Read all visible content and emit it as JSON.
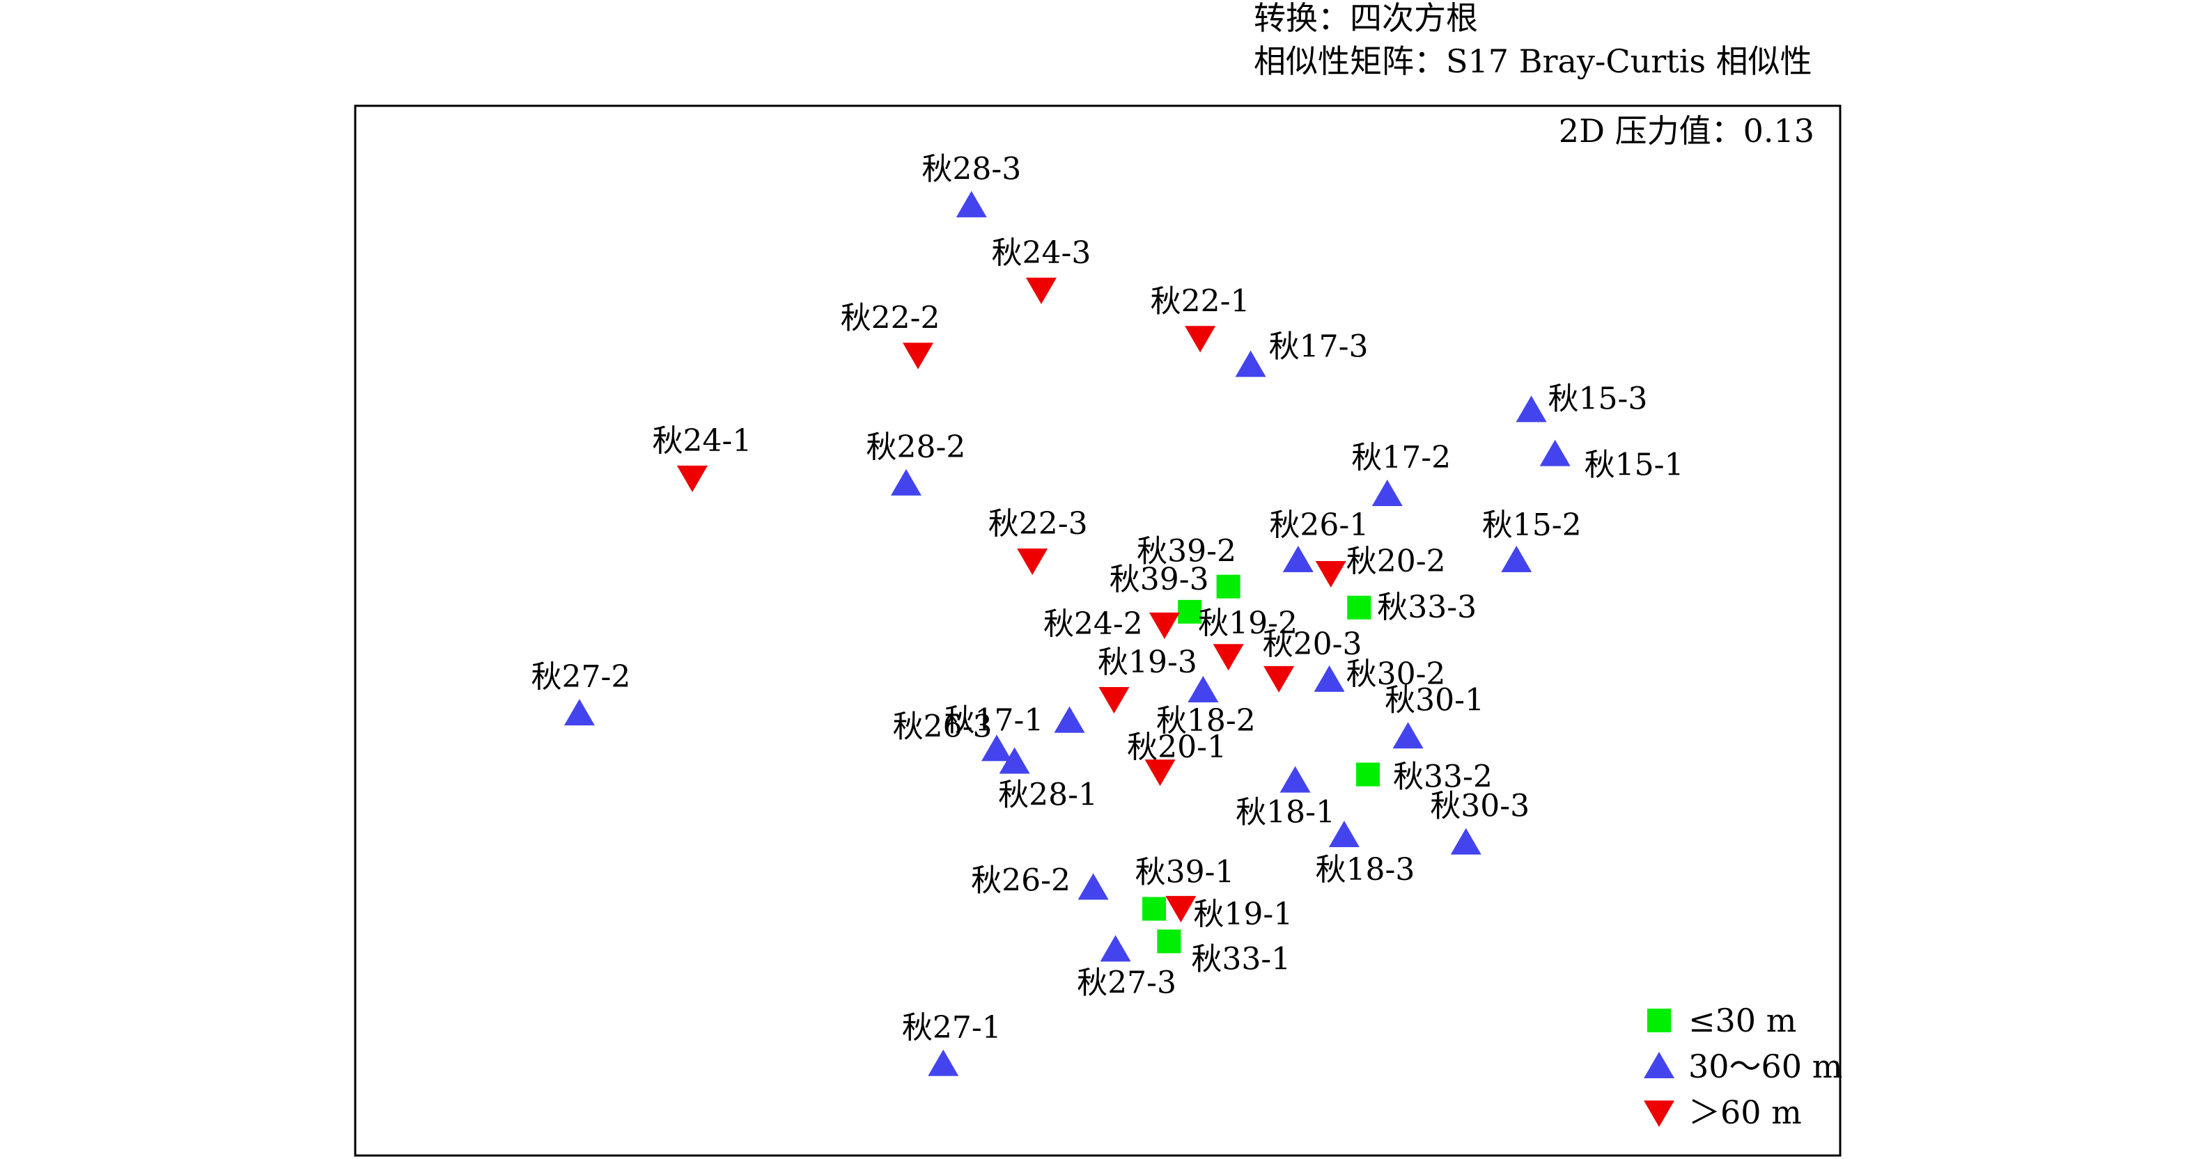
{
  "header": {
    "transform": "转换：四次方根",
    "resemblance": "相似性矩阵：S17 Bray-Curtis 相似性"
  },
  "stress_label": "2D 压力值：0.13",
  "colors": {
    "shallow": "#00ee00",
    "mid": "#4444ee",
    "deep": "#ee0000"
  },
  "chart_data": {
    "type": "scatter",
    "xlim": [
      0,
      100
    ],
    "ylim": [
      0,
      100
    ],
    "grid": false,
    "legend_position": "bottom-right",
    "legend": [
      {
        "group": "shallow",
        "marker": "square",
        "label": "≤30 m"
      },
      {
        "group": "mid",
        "marker": "triangle-up",
        "label": "30～60 m"
      },
      {
        "group": "deep",
        "marker": "triangle-down",
        "label": "＞60 m"
      }
    ],
    "points": [
      {
        "label": "秋28-3",
        "group": "mid",
        "x": 41.5,
        "y": 90.5
      },
      {
        "label": "秋24-3",
        "group": "deep",
        "x": 46.2,
        "y": 82.5
      },
      {
        "label": "秋22-2",
        "group": "deep",
        "x": 37.9,
        "y": 76.3
      },
      {
        "label": "秋22-1",
        "group": "deep",
        "x": 56.9,
        "y": 77.9
      },
      {
        "label": "秋17-3",
        "group": "mid",
        "x": 60.3,
        "y": 75.3
      },
      {
        "label": "秋15-3",
        "group": "mid",
        "x": 79.2,
        "y": 71.0
      },
      {
        "label": "秋15-1",
        "group": "mid",
        "x": 80.8,
        "y": 66.8
      },
      {
        "label": "秋24-1",
        "group": "deep",
        "x": 22.7,
        "y": 64.6
      },
      {
        "label": "秋28-2",
        "group": "mid",
        "x": 37.1,
        "y": 64.0
      },
      {
        "label": "秋17-2",
        "group": "mid",
        "x": 69.5,
        "y": 63.0
      },
      {
        "label": "秋22-3",
        "group": "deep",
        "x": 45.6,
        "y": 56.7
      },
      {
        "label": "秋26-1",
        "group": "mid",
        "x": 63.5,
        "y": 56.7
      },
      {
        "label": "秋20-2",
        "group": "deep",
        "x": 65.7,
        "y": 55.5
      },
      {
        "label": "秋15-2",
        "group": "mid",
        "x": 78.2,
        "y": 56.7
      },
      {
        "label": "秋39-2",
        "group": "shallow",
        "x": 58.8,
        "y": 54.2
      },
      {
        "label": "秋39-3",
        "group": "shallow",
        "x": 56.2,
        "y": 51.8
      },
      {
        "label": "秋33-3",
        "group": "shallow",
        "x": 67.6,
        "y": 52.2
      },
      {
        "label": "秋24-2",
        "group": "deep",
        "x": 54.5,
        "y": 50.6
      },
      {
        "label": "秋19-2",
        "group": "deep",
        "x": 58.8,
        "y": 47.6
      },
      {
        "label": "秋20-3",
        "group": "deep",
        "x": 62.2,
        "y": 45.5
      },
      {
        "label": "秋30-2",
        "group": "mid",
        "x": 65.6,
        "y": 45.3
      },
      {
        "label": "秋19-3",
        "group": "deep",
        "x": 51.1,
        "y": 43.5
      },
      {
        "label": "秋18-2",
        "group": "mid",
        "x": 57.1,
        "y": 44.3
      },
      {
        "label": "秋17-1",
        "group": "mid",
        "x": 48.1,
        "y": 41.4
      },
      {
        "label": "秋27-2",
        "group": "mid",
        "x": 15.1,
        "y": 42.1
      },
      {
        "label": "秋30-1",
        "group": "mid",
        "x": 70.9,
        "y": 39.9
      },
      {
        "label": "秋26-3",
        "group": "mid",
        "x": 43.2,
        "y": 38.7
      },
      {
        "label": "秋28-1",
        "group": "mid",
        "x": 44.4,
        "y": 37.5
      },
      {
        "label": "秋20-1",
        "group": "deep",
        "x": 54.2,
        "y": 36.6
      },
      {
        "label": "秋33-2",
        "group": "shallow",
        "x": 68.2,
        "y": 36.3
      },
      {
        "label": "秋18-1",
        "group": "mid",
        "x": 63.3,
        "y": 35.7
      },
      {
        "label": "秋18-3",
        "group": "mid",
        "x": 66.6,
        "y": 30.5
      },
      {
        "label": "秋30-3",
        "group": "mid",
        "x": 74.8,
        "y": 29.8
      },
      {
        "label": "秋26-2",
        "group": "mid",
        "x": 49.7,
        "y": 25.5
      },
      {
        "label": "秋39-1",
        "group": "shallow",
        "x": 53.8,
        "y": 23.5
      },
      {
        "label": "秋19-1",
        "group": "deep",
        "x": 55.6,
        "y": 23.6
      },
      {
        "label": "秋33-1",
        "group": "shallow",
        "x": 54.8,
        "y": 20.4
      },
      {
        "label": "秋27-3",
        "group": "mid",
        "x": 51.2,
        "y": 19.6
      },
      {
        "label": "秋27-1",
        "group": "mid",
        "x": 39.6,
        "y": 8.7
      }
    ]
  }
}
